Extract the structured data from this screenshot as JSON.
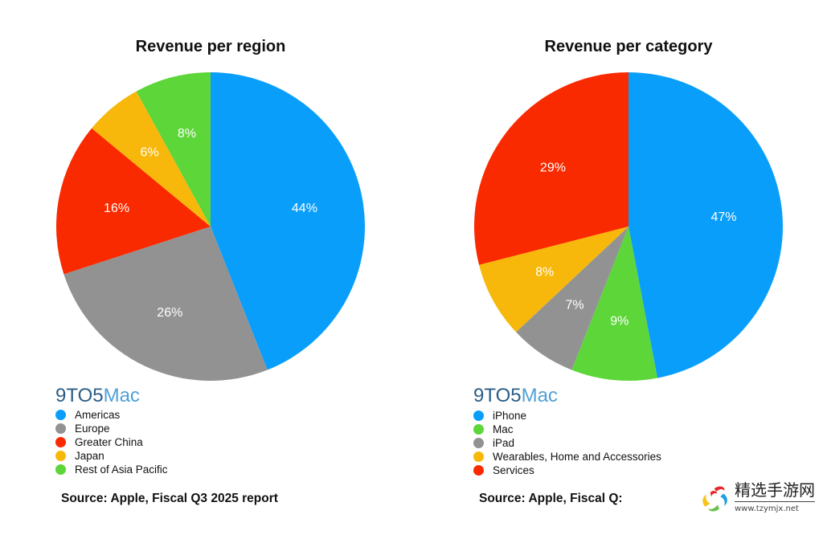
{
  "chart_data": [
    {
      "type": "pie",
      "title": "Revenue per region",
      "categories": [
        "Americas",
        "Europe",
        "Greater China",
        "Japan",
        "Rest of Asia Pacific"
      ],
      "values": [
        44,
        26,
        16,
        6,
        8
      ],
      "labels": [
        "44%",
        "26%",
        "16%",
        "6%",
        "8%"
      ],
      "colors": [
        "#0a9efb",
        "#929292",
        "#fa2a00",
        "#f8b80b",
        "#5dd63a"
      ],
      "legend_position": "bottom-left",
      "start": "top, clockwise"
    },
    {
      "type": "pie",
      "title": "Revenue per category",
      "categories": [
        "iPhone",
        "Mac",
        "iPad",
        "Wearables, Home and Accessories",
        "Services"
      ],
      "values": [
        47,
        9,
        7,
        8,
        29
      ],
      "labels": [
        "47%",
        "9%",
        "7%",
        "8%",
        "29%"
      ],
      "colors": [
        "#0a9efb",
        "#5dd63a",
        "#929292",
        "#f8b80b",
        "#fa2a00"
      ],
      "legend_position": "bottom-left",
      "start": "top, clockwise"
    }
  ],
  "branding": {
    "logo_part1": "9TO5",
    "logo_part2": "Mac"
  },
  "sources": {
    "left": "Source: Apple, Fiscal Q3 2025 report",
    "right": "Source: Apple, Fiscal Q:"
  },
  "watermark": {
    "text": "精选手游网",
    "url": "www.tzymjx.net"
  }
}
